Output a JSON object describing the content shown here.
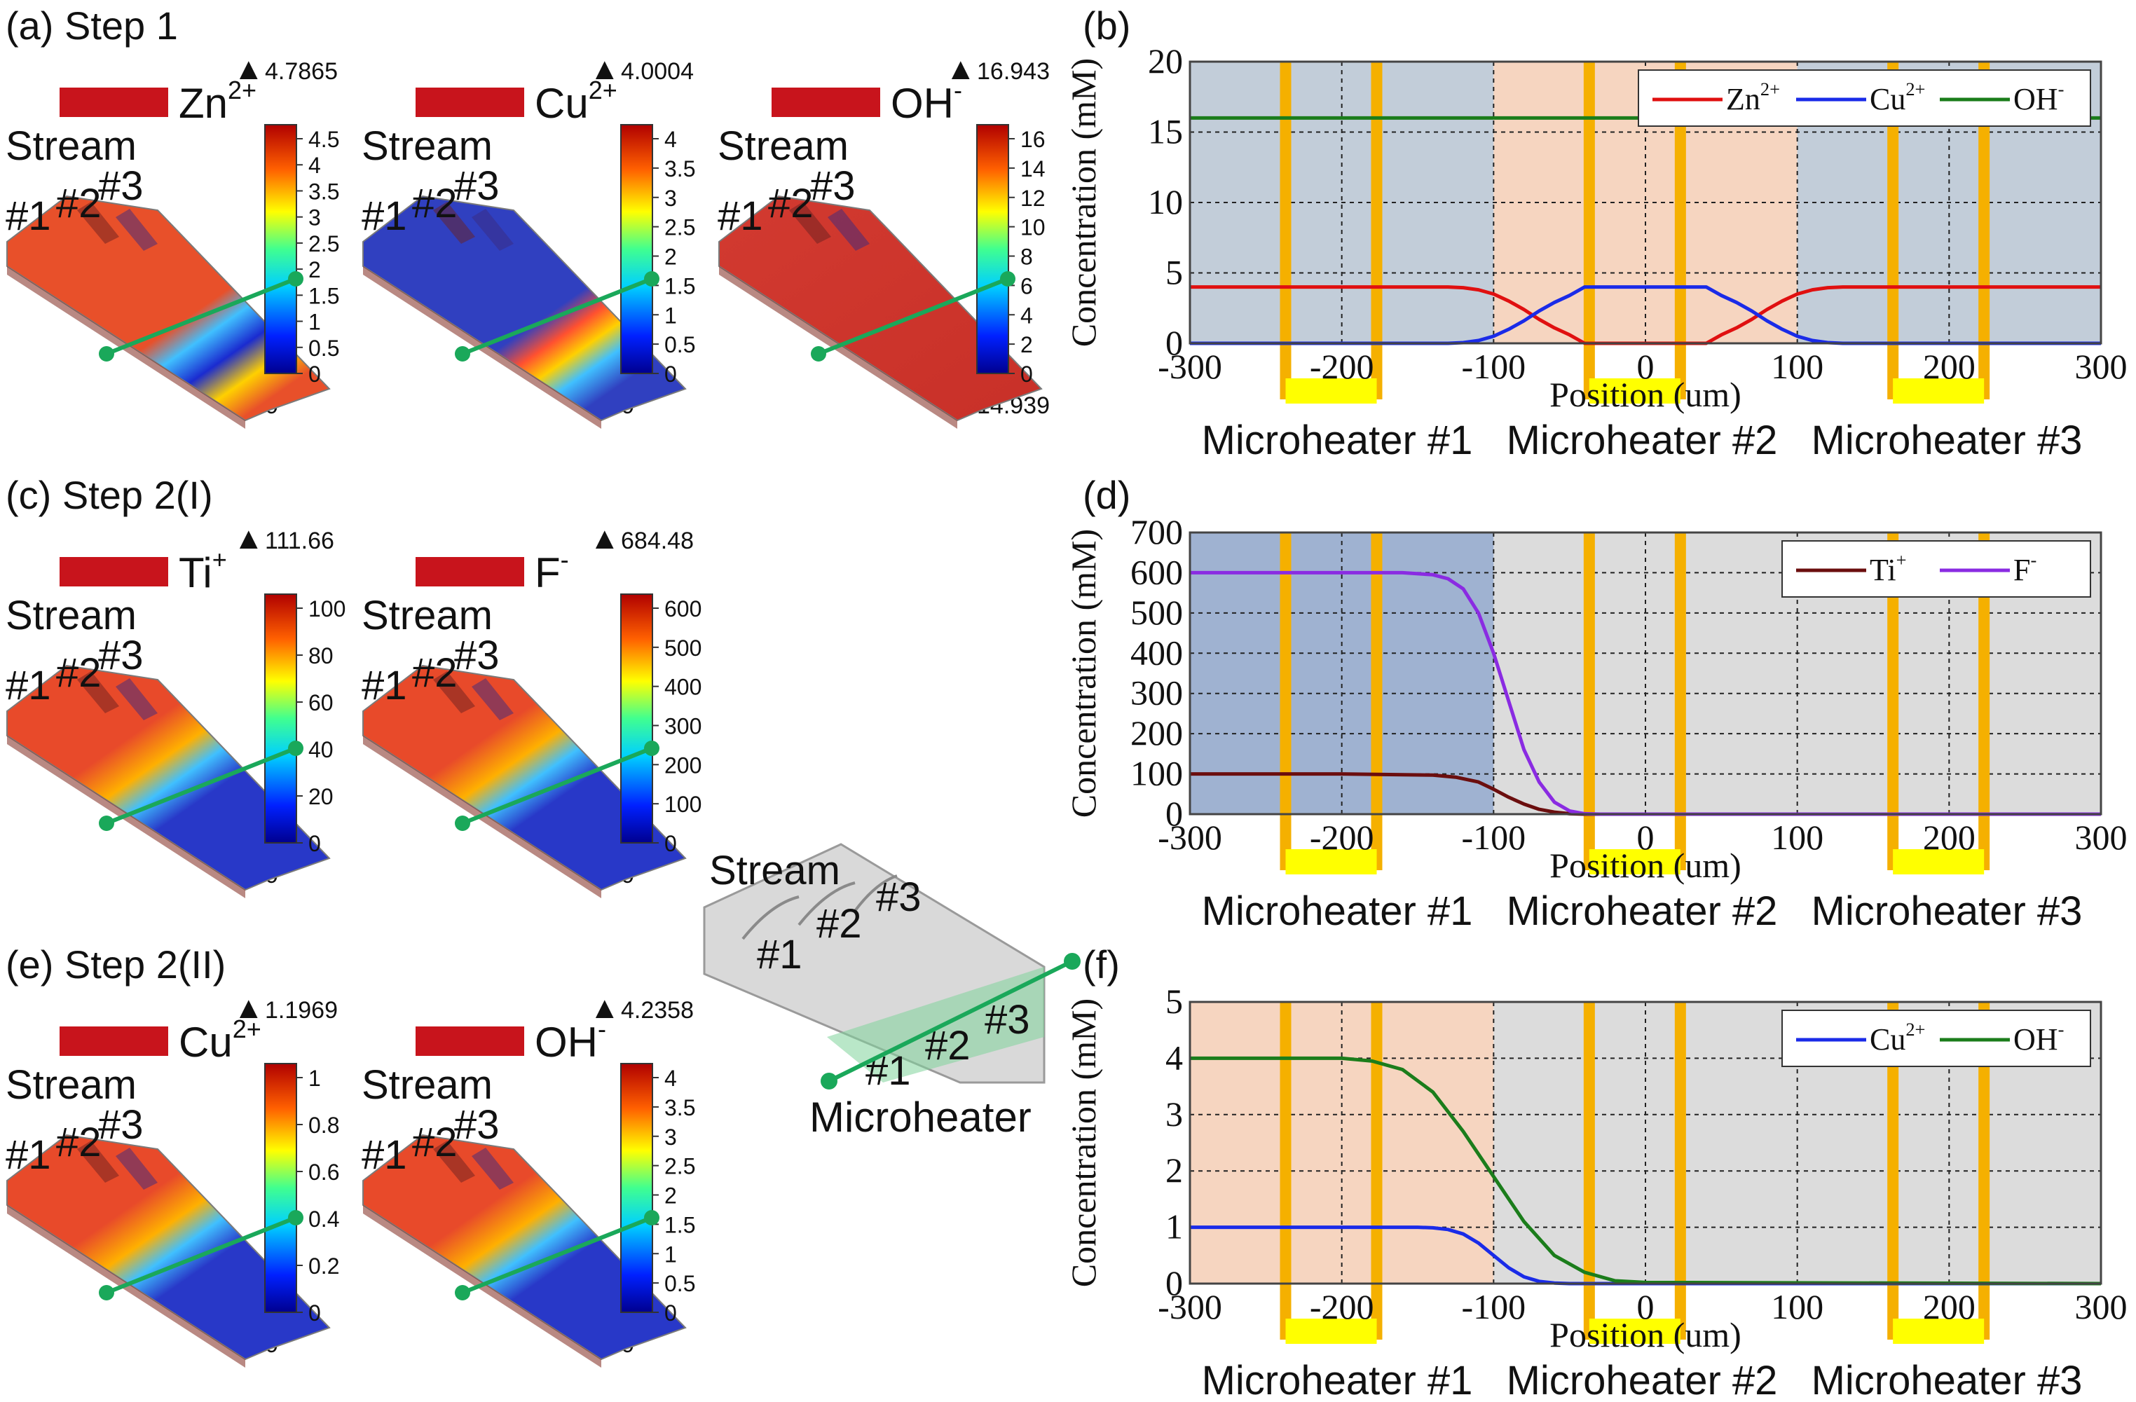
{
  "colors": {
    "zn": "#e01010",
    "cu": "#1a2be8",
    "oh": "#1b7d1b",
    "ti": "#6b0e0e",
    "f": "#8a2be2",
    "heater_bar": "#f5b000",
    "heater_pad": "#ffff00",
    "region_blue": "#c2cdd9",
    "region_peach": "#f6d5c0",
    "region_blue2": "#9fb2d1",
    "region_gray": "#dcdcdc",
    "probe_line": "#1aa85a"
  },
  "sim_panels": [
    {
      "tag": "(a) Step 1",
      "maps": [
        {
          "species": "Zn",
          "sup": "2+",
          "max": "4.7865",
          "min": "0",
          "ticks": [
            "4.5",
            "4",
            "3.5",
            "3",
            "2.5",
            "2",
            "1.5",
            "1",
            "0.5",
            "0"
          ],
          "body": "mixed-red",
          "streams": [
            "Stream",
            "#1",
            "#2",
            "#3"
          ]
        },
        {
          "species": "Cu",
          "sup": "2+",
          "max": "4.0004",
          "min": "0",
          "ticks": [
            "4",
            "3.5",
            "3",
            "2.5",
            "2",
            "1.5",
            "1",
            "0.5",
            "0"
          ],
          "body": "mixed-blue",
          "streams": [
            "Stream",
            "#1",
            "#2",
            "#3"
          ]
        },
        {
          "species": "OH",
          "sup": "-",
          "max": "16.943",
          "min": "14.939",
          "ticks": [
            "16",
            "14",
            "12",
            "10",
            "8",
            "6",
            "4",
            "2",
            "0"
          ],
          "body": "red",
          "streams": [
            "Stream",
            "#1",
            "#2",
            "#3"
          ]
        }
      ]
    },
    {
      "tag": "(c) Step 2(I)",
      "maps": [
        {
          "species": "Ti",
          "sup": "+",
          "max": "111.66",
          "min": "0",
          "ticks": [
            "100",
            "80",
            "60",
            "40",
            "20",
            "0"
          ],
          "body": "left-red",
          "streams": [
            "Stream",
            "#1",
            "#2",
            "#3"
          ]
        },
        {
          "species": "F",
          "sup": "-",
          "max": "684.48",
          "min": "0",
          "ticks": [
            "600",
            "500",
            "400",
            "300",
            "200",
            "100",
            "0"
          ],
          "body": "left-red",
          "streams": [
            "Stream",
            "#1",
            "#2",
            "#3"
          ]
        }
      ]
    },
    {
      "tag": "(e) Step 2(II)",
      "maps": [
        {
          "species": "Cu",
          "sup": "2+",
          "max": "1.1969",
          "min": "0",
          "ticks": [
            "1",
            "0.8",
            "0.6",
            "0.4",
            "0.2",
            "0"
          ],
          "body": "left-red",
          "streams": [
            "Stream",
            "#1",
            "#2",
            "#3"
          ]
        },
        {
          "species": "OH",
          "sup": "-",
          "max": "4.2358",
          "min": "0",
          "ticks": [
            "4",
            "3.5",
            "3",
            "2.5",
            "2",
            "1.5",
            "1",
            "0.5",
            "0"
          ],
          "body": "left-red",
          "streams": [
            "Stream",
            "#1",
            "#2",
            "#3"
          ]
        }
      ]
    }
  ],
  "schematic": {
    "stream_label": "Stream",
    "inlets": [
      "#1",
      "#2",
      "#3"
    ],
    "heaters": [
      "#1",
      "#2",
      "#3"
    ],
    "heater_label": "Microheater"
  },
  "chart_data": [
    {
      "panel": "(b)",
      "type": "line",
      "xlabel": "Position (um)",
      "ylabel": "Concentration (mM)",
      "xlim": [
        -300,
        300
      ],
      "ylim": [
        0,
        20
      ],
      "xticks": [
        -300,
        -200,
        -100,
        0,
        100,
        200,
        300
      ],
      "yticks": [
        0,
        5,
        10,
        15,
        20
      ],
      "regions": [
        {
          "from": -300,
          "to": -100,
          "color": "region_blue"
        },
        {
          "from": -100,
          "to": 100,
          "color": "region_peach"
        },
        {
          "from": 100,
          "to": 300,
          "color": "region_blue"
        }
      ],
      "series": [
        {
          "name": "Zn",
          "sup": "2+",
          "color": "zn",
          "x": [
            -300,
            -130,
            -120,
            -110,
            -100,
            -90,
            -80,
            -70,
            -60,
            -50,
            -40,
            40,
            50,
            60,
            70,
            80,
            90,
            100,
            110,
            120,
            130,
            300
          ],
          "y": [
            4,
            4,
            3.95,
            3.8,
            3.5,
            3,
            2.4,
            1.7,
            1.1,
            0.6,
            0,
            0,
            0.6,
            1.1,
            1.7,
            2.4,
            3,
            3.5,
            3.8,
            3.95,
            4,
            4
          ]
        },
        {
          "name": "Cu",
          "sup": "2+",
          "color": "cu",
          "x": [
            -300,
            -130,
            -120,
            -110,
            -100,
            -90,
            -80,
            -70,
            -60,
            -50,
            -40,
            40,
            50,
            60,
            70,
            80,
            90,
            100,
            110,
            120,
            130,
            300
          ],
          "y": [
            0,
            0,
            0.05,
            0.2,
            0.5,
            1,
            1.6,
            2.3,
            2.9,
            3.4,
            4,
            4,
            3.4,
            2.9,
            2.3,
            1.6,
            1,
            0.5,
            0.2,
            0.05,
            0,
            0
          ]
        },
        {
          "name": "OH",
          "sup": "-",
          "color": "oh",
          "x": [
            -300,
            300
          ],
          "y": [
            16,
            16
          ]
        }
      ],
      "legend": "top-right",
      "heaters": [
        "Microheater #1",
        "Microheater #2",
        "Microheater #3"
      ]
    },
    {
      "panel": "(d)",
      "type": "line",
      "xlabel": "Position (um)",
      "ylabel": "Concentration (mM)",
      "xlim": [
        -300,
        300
      ],
      "ylim": [
        0,
        700
      ],
      "xticks": [
        -300,
        -200,
        -100,
        0,
        100,
        200,
        300
      ],
      "yticks": [
        0,
        100,
        200,
        300,
        400,
        500,
        600,
        700
      ],
      "regions": [
        {
          "from": -300,
          "to": -100,
          "color": "region_blue2"
        },
        {
          "from": -100,
          "to": 300,
          "color": "region_gray"
        }
      ],
      "series": [
        {
          "name": "Ti",
          "sup": "+",
          "color": "ti",
          "x": [
            -300,
            -200,
            -140,
            -125,
            -110,
            -100,
            -90,
            -80,
            -70,
            -60,
            -50,
            -40,
            -30,
            300
          ],
          "y": [
            100,
            100,
            97,
            92,
            80,
            62,
            42,
            25,
            12,
            5,
            1,
            0,
            0,
            0
          ]
        },
        {
          "name": "F",
          "sup": "-",
          "color": "f",
          "x": [
            -300,
            -160,
            -140,
            -130,
            -120,
            -110,
            -100,
            -90,
            -80,
            -70,
            -60,
            -50,
            -40,
            -30,
            300
          ],
          "y": [
            600,
            600,
            595,
            585,
            560,
            500,
            400,
            280,
            160,
            80,
            30,
            8,
            1,
            0,
            0
          ]
        }
      ],
      "legend": "top-right",
      "heaters": [
        "Microheater #1",
        "Microheater #2",
        "Microheater #3"
      ]
    },
    {
      "panel": "(f)",
      "type": "line",
      "xlabel": "Position (um)",
      "ylabel": "Concentration (mM)",
      "xlim": [
        -300,
        300
      ],
      "ylim": [
        0,
        5
      ],
      "xticks": [
        -300,
        -200,
        -100,
        0,
        100,
        200,
        300
      ],
      "yticks": [
        0,
        1,
        2,
        3,
        4,
        5
      ],
      "regions": [
        {
          "from": -300,
          "to": -100,
          "color": "region_peach"
        },
        {
          "from": -100,
          "to": 300,
          "color": "region_gray"
        }
      ],
      "series": [
        {
          "name": "Cu",
          "sup": "2+",
          "color": "cu",
          "x": [
            -300,
            -150,
            -140,
            -130,
            -120,
            -110,
            -100,
            -90,
            -80,
            -70,
            -60,
            -50,
            300
          ],
          "y": [
            1,
            1,
            0.99,
            0.96,
            0.88,
            0.72,
            0.5,
            0.28,
            0.12,
            0.04,
            0.01,
            0,
            0
          ]
        },
        {
          "name": "OH",
          "sup": "-",
          "color": "oh",
          "x": [
            -300,
            -200,
            -180,
            -160,
            -140,
            -120,
            -100,
            -80,
            -60,
            -40,
            -20,
            0,
            300
          ],
          "y": [
            4,
            4,
            3.95,
            3.8,
            3.4,
            2.7,
            1.9,
            1.1,
            0.5,
            0.2,
            0.05,
            0.02,
            0
          ]
        }
      ],
      "legend": "top-right",
      "heaters": [
        "Microheater #1",
        "Microheater #2",
        "Microheater #3"
      ]
    }
  ],
  "heater_positions": [
    -200,
    0,
    200
  ],
  "heater_width": 60
}
